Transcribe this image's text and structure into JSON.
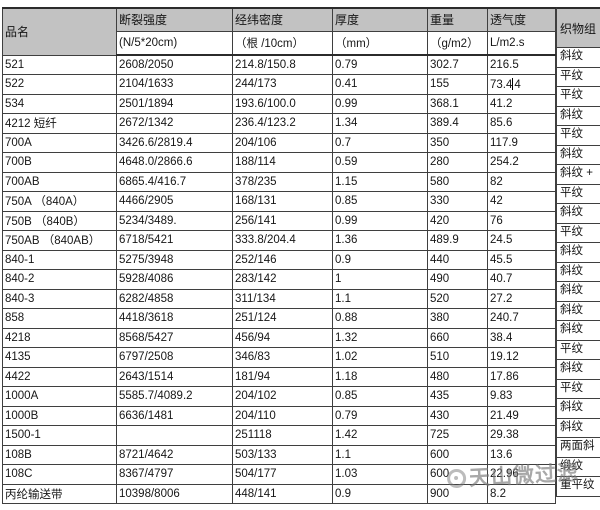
{
  "table": {
    "header": {
      "col1": "品名",
      "cols": [
        {
          "line1": "断裂强度",
          "line2": "(N/5*20cm)"
        },
        {
          "line1": "经纬密度",
          "line2": "（根 /10cm）"
        },
        {
          "line1": "厚度",
          "line2": "（mm）"
        },
        {
          "line1": "重量",
          "line2": "（g/m2）"
        },
        {
          "line1": "透气度",
          "line2": "L/m2.s"
        }
      ],
      "last_col": "织物组"
    },
    "rows": [
      {
        "name": "521",
        "strength": "2608/2050",
        "density": "214.8/150.8",
        "thickness": "0.79",
        "weight": "302.7",
        "permeability": "216.5",
        "weave": "斜纹"
      },
      {
        "name": "522",
        "strength": "2104/1633",
        "density": "244/173",
        "thickness": "0.41",
        "weight": "155",
        "permeability": "73.44",
        "weave": "平纹"
      },
      {
        "name": "534",
        "strength": "2501/1894",
        "density": "193.6/100.0",
        "thickness": "0.99",
        "weight": "368.1",
        "permeability": "41.2",
        "weave": "平纹"
      },
      {
        "name": "4212 短纤",
        "strength": "2672/1342",
        "density": "236.4/123.2",
        "thickness": "1.34",
        "weight": "389.4",
        "permeability": "85.6",
        "weave": "斜纹"
      },
      {
        "name": "700A",
        "strength": "3426.6/2819.4",
        "density": "204/106",
        "thickness": "0.7",
        "weight": "350",
        "permeability": "117.9",
        "weave": "平纹"
      },
      {
        "name": "700B",
        "strength": "4648.0/2866.6",
        "density": "188/114",
        "thickness": "0.59",
        "weight": "280",
        "permeability": "254.2",
        "weave": "斜纹"
      },
      {
        "name": "700AB",
        "strength": "6865.4/416.7",
        "density": "378/235",
        "thickness": "1.15",
        "weight": "580",
        "permeability": "82",
        "weave": "斜纹 +"
      },
      {
        "name": "750A （840A）",
        "strength": "4466/2905",
        "density": "168/131",
        "thickness": "0.85",
        "weight": "330",
        "permeability": "42",
        "weave": "平纹"
      },
      {
        "name": "750B （840B）",
        "strength": "5234/3489.",
        "density": "256/141",
        "thickness": "0.99",
        "weight": "420",
        "permeability": "76",
        "weave": "斜纹"
      },
      {
        "name": "750AB （840AB）",
        "strength": "6718/5421",
        "density": "333.8/204.4",
        "thickness": "1.36",
        "weight": "489.9",
        "permeability": "24.5",
        "weave": "平纹"
      },
      {
        "name": "840-1",
        "strength": "5275/3948",
        "density": "252/146",
        "thickness": "0.9",
        "weight": "440",
        "permeability": "45.5",
        "weave": "斜纹"
      },
      {
        "name": "840-2",
        "strength": "5928/4086",
        "density": "283/142",
        "thickness": "1",
        "weight": "490",
        "permeability": "40.7",
        "weave": "斜纹"
      },
      {
        "name": "840-3",
        "strength": "6282/4858",
        "density": "311/134",
        "thickness": "1.1",
        "weight": "520",
        "permeability": "27.2",
        "weave": "斜纹"
      },
      {
        "name": "858",
        "strength": "4418/3618",
        "density": "251/124",
        "thickness": "0.88",
        "weight": "380",
        "permeability": "240.7",
        "weave": "斜纹"
      },
      {
        "name": "4218",
        "strength": "8568/5427",
        "density": "456/94",
        "thickness": "1.32",
        "weight": "660",
        "permeability": "38.4",
        "weave": "斜纹"
      },
      {
        "name": "4135",
        "strength": "6797/2508",
        "density": "346/83",
        "thickness": "1.02",
        "weight": "510",
        "permeability": "19.12",
        "weave": "平纹"
      },
      {
        "name": "4422",
        "strength": "2643/1514",
        "density": "181/94",
        "thickness": "1.18",
        "weight": "480",
        "permeability": "17.86",
        "weave": "斜纹"
      },
      {
        "name": "1000A",
        "strength": "5585.7/4089.2",
        "density": "204/102",
        "thickness": "0.85",
        "weight": "435",
        "permeability": "9.83",
        "weave": "平纹"
      },
      {
        "name": "1000B",
        "strength": "6636/1481",
        "density": "204/110",
        "thickness": "0.79",
        "weight": "430",
        "permeability": "21.49",
        "weave": "斜纹"
      },
      {
        "name": "1500-1",
        "strength": "",
        "density": "251118",
        "thickness": "1.42",
        "weight": "725",
        "permeability": "29.38",
        "weave": "斜纹"
      },
      {
        "name": "108B",
        "strength": "8721/4642",
        "density": "503/133",
        "thickness": "1.1",
        "weight": "600",
        "permeability": "13.6",
        "weave": "两面斜"
      },
      {
        "name": "108C",
        "strength": "8367/4797",
        "density": "504/177",
        "thickness": "1.03",
        "weight": "600",
        "permeability": "22.96",
        "weave": "缎纹"
      },
      {
        "name": "丙纶输送带",
        "strength": "10398/8006",
        "density": "448/141",
        "thickness": "0.9",
        "weight": "900",
        "permeability": "8.2",
        "weave": "重平纹"
      }
    ],
    "cursor": {
      "row_index": 1,
      "field": "permeability",
      "before": "73.4",
      "after": "4"
    }
  },
  "watermark": {
    "text": "天山微过滤"
  },
  "colors": {
    "header_bg": "#c2c2c2",
    "grid_line": "#3f3f3f",
    "text": "#161616",
    "watermark": "#7a7a7a"
  }
}
